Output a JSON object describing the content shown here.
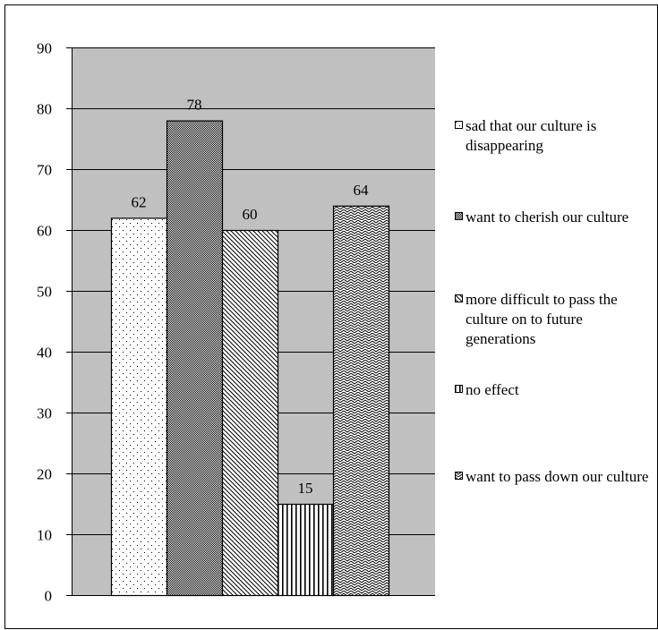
{
  "chart_data": {
    "type": "bar",
    "title": "",
    "xlabel": "",
    "ylabel": "",
    "ylim": [
      0,
      90
    ],
    "yticks": [
      0,
      10,
      20,
      30,
      40,
      50,
      60,
      70,
      80,
      90
    ],
    "grid": true,
    "legend_position": "right",
    "plot_background": "#c0c0c0",
    "series": [
      {
        "name": "sad that our culture is disappearing",
        "value": 62,
        "pattern": "dots"
      },
      {
        "name": "want to cherish our culture",
        "value": 78,
        "pattern": "dense-checker"
      },
      {
        "name": "more difficult to pass the culture on to future generations",
        "value": 60,
        "pattern": "diagonal-down"
      },
      {
        "name": "no effect",
        "value": 15,
        "pattern": "vertical-lines"
      },
      {
        "name": "want to pass down our culture",
        "value": 64,
        "pattern": "zigzag"
      }
    ]
  }
}
